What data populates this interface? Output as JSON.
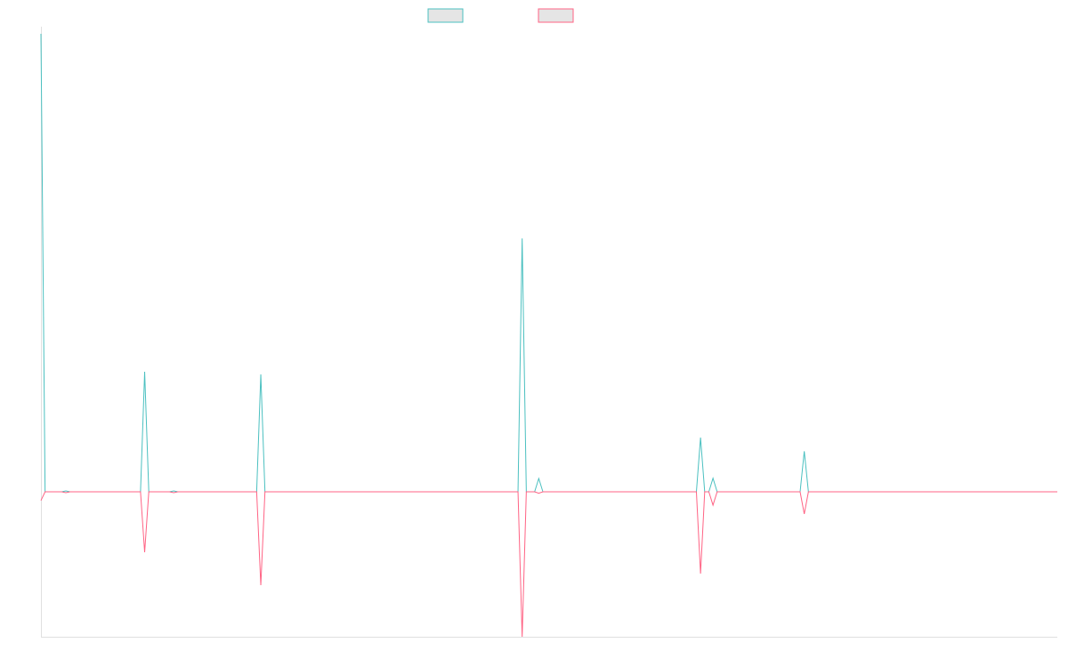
{
  "chart_data": {
    "type": "line",
    "title": "",
    "xlabel": "",
    "ylabel": "",
    "num_points": 246,
    "ylim": [
      -100,
      316.6
    ],
    "grid": false,
    "legend": {
      "placement": "top-center",
      "entries": [
        "",
        ""
      ]
    },
    "series": [
      {
        "name": "",
        "color": "#4bc0c0",
        "nonzero": {
          "0": 316,
          "6": 0.6,
          "25": 82.8,
          "32": 0.6,
          "53": 81,
          "116": 174.8,
          "120": 9.2,
          "159": 37.4,
          "162": 9.4,
          "184": 28
        }
      },
      {
        "name": "",
        "color": "#ff6384",
        "nonzero": {
          "0": -6,
          "6": -0.6,
          "25": -41.7,
          "32": -0.6,
          "53": -64.4,
          "116": -100,
          "120": -1,
          "159": -56.4,
          "162": -9.2,
          "184": -15.3
        }
      }
    ]
  }
}
